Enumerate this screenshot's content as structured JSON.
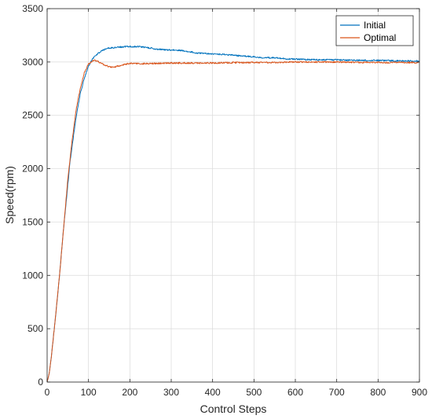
{
  "chart_data": {
    "type": "line",
    "xlabel": "Control Steps",
    "ylabel": "Speed(rpm)",
    "xlim": [
      0,
      900
    ],
    "ylim": [
      0,
      3500
    ],
    "xticks": [
      0,
      100,
      200,
      300,
      400,
      500,
      600,
      700,
      800,
      900
    ],
    "yticks": [
      0,
      500,
      1000,
      1500,
      2000,
      2500,
      3000,
      3500
    ],
    "grid": true,
    "legend_position": "top-right",
    "series": [
      {
        "name": "Initial",
        "color": "#0072BD",
        "x": [
          0,
          5,
          10,
          20,
          30,
          40,
          50,
          55,
          60,
          70,
          80,
          90,
          100,
          110,
          120,
          130,
          140,
          150,
          160,
          170,
          180,
          190,
          200,
          210,
          220,
          230,
          240,
          250,
          260,
          270,
          280,
          300,
          320,
          340,
          360,
          380,
          400,
          430,
          460,
          490,
          520,
          550,
          580,
          610,
          650,
          700,
          750,
          800,
          850,
          900
        ],
        "y": [
          0,
          80,
          230,
          600,
          1000,
          1450,
          1850,
          2050,
          2200,
          2480,
          2700,
          2850,
          2960,
          3030,
          3070,
          3100,
          3120,
          3130,
          3135,
          3140,
          3140,
          3145,
          3145,
          3145,
          3145,
          3140,
          3135,
          3130,
          3125,
          3120,
          3115,
          3112,
          3110,
          3100,
          3085,
          3080,
          3075,
          3070,
          3060,
          3050,
          3040,
          3040,
          3030,
          3025,
          3020,
          3020,
          3015,
          3015,
          3010,
          3010
        ]
      },
      {
        "name": "Optimal",
        "color": "#D95319",
        "x": [
          0,
          5,
          10,
          20,
          30,
          40,
          50,
          60,
          70,
          80,
          90,
          100,
          110,
          115,
          120,
          130,
          140,
          150,
          160,
          170,
          180,
          190,
          200,
          220,
          250,
          300,
          350,
          400,
          450,
          500,
          550,
          600,
          650,
          700,
          750,
          800,
          850,
          900
        ],
        "y": [
          0,
          80,
          230,
          600,
          1000,
          1450,
          1900,
          2250,
          2550,
          2750,
          2900,
          2980,
          3010,
          3015,
          3010,
          2990,
          2970,
          2955,
          2950,
          2960,
          2970,
          2980,
          2985,
          2985,
          2985,
          2990,
          2990,
          2990,
          2995,
          2995,
          2995,
          3000,
          3000,
          3000,
          2995,
          2995,
          2995,
          2995
        ]
      }
    ]
  }
}
